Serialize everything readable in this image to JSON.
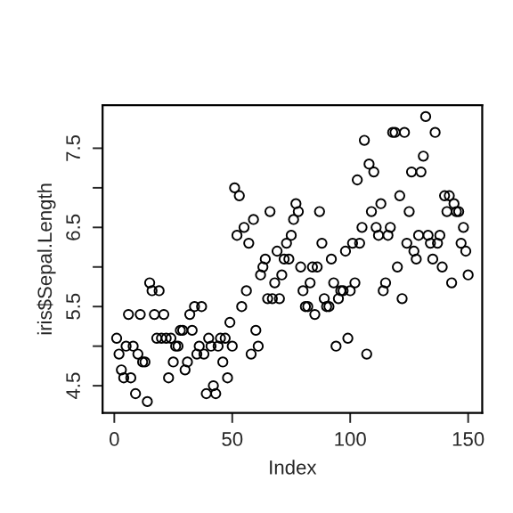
{
  "chart_data": {
    "type": "scatter",
    "xlabel": "Index",
    "ylabel": "iris$Sepal.Length",
    "x": [
      1,
      2,
      3,
      4,
      5,
      6,
      7,
      8,
      9,
      10,
      11,
      12,
      13,
      14,
      15,
      16,
      17,
      18,
      19,
      20,
      21,
      22,
      23,
      24,
      25,
      26,
      27,
      28,
      29,
      30,
      31,
      32,
      33,
      34,
      35,
      36,
      37,
      38,
      39,
      40,
      41,
      42,
      43,
      44,
      45,
      46,
      47,
      48,
      49,
      50,
      51,
      52,
      53,
      54,
      55,
      56,
      57,
      58,
      59,
      60,
      61,
      62,
      63,
      64,
      65,
      66,
      67,
      68,
      69,
      70,
      71,
      72,
      73,
      74,
      75,
      76,
      77,
      78,
      79,
      80,
      81,
      82,
      83,
      84,
      85,
      86,
      87,
      88,
      89,
      90,
      91,
      92,
      93,
      94,
      95,
      96,
      97,
      98,
      99,
      100,
      101,
      102,
      103,
      104,
      105,
      106,
      107,
      108,
      109,
      110,
      111,
      112,
      113,
      114,
      115,
      116,
      117,
      118,
      119,
      120,
      121,
      122,
      123,
      124,
      125,
      126,
      127,
      128,
      129,
      130,
      131,
      132,
      133,
      134,
      135,
      136,
      137,
      138,
      139,
      140,
      141,
      142,
      143,
      144,
      145,
      146,
      147,
      148,
      149,
      150
    ],
    "values": [
      5.1,
      4.9,
      4.7,
      4.6,
      5.0,
      5.4,
      4.6,
      5.0,
      4.4,
      4.9,
      5.4,
      4.8,
      4.8,
      4.3,
      5.8,
      5.7,
      5.4,
      5.1,
      5.7,
      5.1,
      5.4,
      5.1,
      4.6,
      5.1,
      4.8,
      5.0,
      5.0,
      5.2,
      5.2,
      4.7,
      4.8,
      5.4,
      5.2,
      5.5,
      4.9,
      5.0,
      5.5,
      4.9,
      4.4,
      5.1,
      5.0,
      4.5,
      4.4,
      5.0,
      5.1,
      4.8,
      5.1,
      4.6,
      5.3,
      5.0,
      7.0,
      6.4,
      6.9,
      5.5,
      6.5,
      5.7,
      6.3,
      4.9,
      6.6,
      5.2,
      5.0,
      5.9,
      6.0,
      6.1,
      5.6,
      6.7,
      5.6,
      5.8,
      6.2,
      5.6,
      5.9,
      6.1,
      6.3,
      6.1,
      6.4,
      6.6,
      6.8,
      6.7,
      6.0,
      5.7,
      5.5,
      5.5,
      5.8,
      6.0,
      5.4,
      6.0,
      6.7,
      6.3,
      5.6,
      5.5,
      5.5,
      6.1,
      5.8,
      5.0,
      5.6,
      5.7,
      5.7,
      6.2,
      5.1,
      5.7,
      6.3,
      5.8,
      7.1,
      6.3,
      6.5,
      7.6,
      4.9,
      7.3,
      6.7,
      7.2,
      6.5,
      6.4,
      6.8,
      5.7,
      5.8,
      6.4,
      6.5,
      7.7,
      7.7,
      6.0,
      6.9,
      5.6,
      7.7,
      6.3,
      6.7,
      7.2,
      6.2,
      6.1,
      6.4,
      7.2,
      7.4,
      7.9,
      6.4,
      6.3,
      6.1,
      7.7,
      6.3,
      6.4,
      6.0,
      6.9,
      6.7,
      6.9,
      5.8,
      6.8,
      6.7,
      6.7,
      6.3,
      6.5,
      6.2,
      5.9
    ],
    "color": "#000000",
    "marker": "circle",
    "xlim": [
      -4.96,
      155.96
    ],
    "xticks": [
      0,
      50,
      100,
      150
    ],
    "ylim": [
      4.156,
      8.044
    ],
    "yticks": [
      4.5,
      {
        "value": 5.0,
        "label": null
      },
      5.5,
      {
        "value": 6.0,
        "label": null
      },
      6.5,
      {
        "value": 7.0,
        "label": null
      },
      7.5
    ],
    "grid": false
  }
}
